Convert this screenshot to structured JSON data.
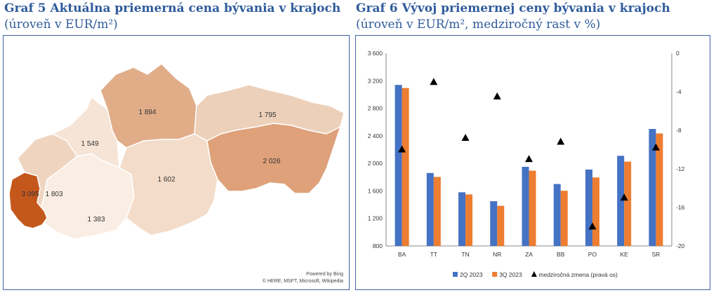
{
  "left": {
    "title": "Graf 5 Aktuálna priemerná cena bývania v krajoch",
    "subtitle": "(úroveň v EUR/m²)",
    "credit_line1": "Powered by Bing",
    "credit_line2": "© HERE, MSFT, Microsoft, Wikipedia",
    "regions": [
      {
        "code": "BA",
        "value": "3 095",
        "color": "#c4581c"
      },
      {
        "code": "TT",
        "value": "1 803",
        "color": "#efd5c0"
      },
      {
        "code": "TN",
        "value": "1 549",
        "color": "#f6e4d6"
      },
      {
        "code": "NR",
        "value": "1 383",
        "color": "#faeee4"
      },
      {
        "code": "ZA",
        "value": "1 894",
        "color": "#e1ad89"
      },
      {
        "code": "BB",
        "value": "1 602",
        "color": "#f3dcc9"
      },
      {
        "code": "PO",
        "value": "1 795",
        "color": "#edd0b9"
      },
      {
        "code": "KE",
        "value": "2 026",
        "color": "#dea17a"
      }
    ]
  },
  "right": {
    "title": "Graf 6 Vývoj priemernej ceny bývania v krajoch",
    "subtitle": "(úroveň v EUR/m², medziročný rast v %)"
  },
  "chart_data": {
    "type": "bar",
    "title": "Graf 6 Vývoj priemernej ceny bývania v krajoch",
    "categories": [
      "BA",
      "TT",
      "TN",
      "NR",
      "ZA",
      "BB",
      "PO",
      "KE",
      "SR"
    ],
    "series": [
      {
        "name": "2Q 2023",
        "type": "bar",
        "axis": "left",
        "color": "#4472c4",
        "values": [
          3140,
          1860,
          1580,
          1450,
          1950,
          1700,
          1910,
          2110,
          2500
        ]
      },
      {
        "name": "3Q 2023",
        "type": "bar",
        "axis": "left",
        "color": "#ed7d31",
        "values": [
          3095,
          1803,
          1549,
          1383,
          1894,
          1602,
          1795,
          2026,
          2435
        ]
      },
      {
        "name": "medziročná zmena (pravá os)",
        "type": "scatter",
        "axis": "right",
        "marker": "triangle",
        "color": "#000000",
        "values": [
          -10.0,
          -3.0,
          -8.8,
          -4.5,
          -11.0,
          -9.2,
          -18.0,
          -15.0,
          -9.8
        ]
      }
    ],
    "ylim": [
      800,
      3600
    ],
    "yticks": [
      800,
      1200,
      1600,
      2000,
      2400,
      2800,
      3200,
      3600
    ],
    "ytick_labels": [
      "800",
      "1 200",
      "1 600",
      "2 000",
      "2 400",
      "2 800",
      "3 200",
      "3 600"
    ],
    "y2lim": [
      -20,
      0
    ],
    "y2ticks": [
      0,
      -4,
      -8,
      -12,
      -16,
      -20
    ],
    "y2tick_labels": [
      "0",
      "-4",
      "-8",
      "-12",
      "-16",
      "-20"
    ],
    "legend": [
      "2Q 2023",
      "3Q 2023",
      "medziročná zmena (pravá os)"
    ],
    "legend_position": "bottom",
    "grid": false
  }
}
